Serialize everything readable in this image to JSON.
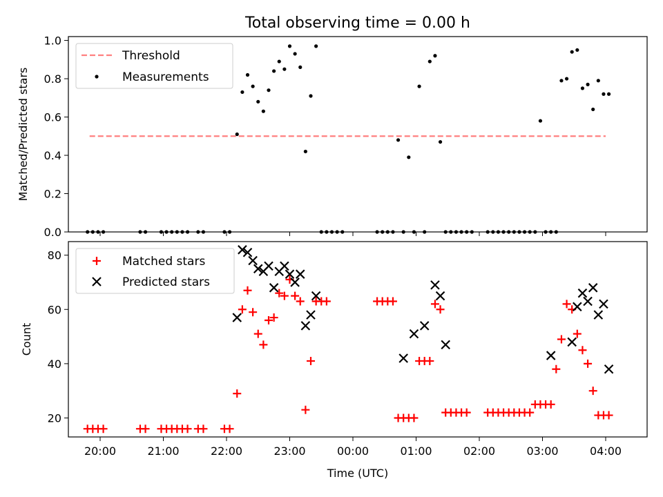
{
  "chart_data": [
    {
      "type": "scatter",
      "title": "Total observing time = 0.00 h",
      "ylabel": "Matched/Predicted stars",
      "ylim": [
        0,
        1.02
      ],
      "y_ticks": [
        "0.0",
        "0.2",
        "0.4",
        "0.6",
        "0.8",
        "1.0"
      ],
      "x_ticks": [
        "20:00",
        "21:00",
        "22:00",
        "23:00",
        "00:00",
        "01:00",
        "02:00",
        "03:00",
        "04:00"
      ],
      "legend": "top-left",
      "series": [
        {
          "name": "Threshold",
          "style": "dashed-line",
          "color": "#ff7f7f",
          "x": [
            "19:50",
            "04:00"
          ],
          "y": [
            0.5,
            0.5
          ]
        },
        {
          "name": "Measurements",
          "style": "point",
          "color": "#000000",
          "x": [
            "19:48",
            "19:53",
            "19:58",
            "20:03",
            "20:38",
            "20:43",
            "20:58",
            "21:03",
            "21:08",
            "21:13",
            "21:18",
            "21:23",
            "21:33",
            "21:38",
            "21:58",
            "22:03",
            "22:10",
            "22:15",
            "22:20",
            "22:25",
            "22:30",
            "22:35",
            "22:40",
            "22:45",
            "22:50",
            "22:55",
            "23:00",
            "23:05",
            "23:10",
            "23:15",
            "23:20",
            "23:25",
            "23:30",
            "23:35",
            "23:40",
            "23:45",
            "23:50",
            "00:23",
            "00:28",
            "00:33",
            "00:38",
            "00:43",
            "00:48",
            "00:53",
            "00:58",
            "01:03",
            "01:08",
            "01:13",
            "01:18",
            "01:23",
            "01:28",
            "01:33",
            "01:38",
            "01:43",
            "01:48",
            "01:53",
            "02:08",
            "02:13",
            "02:18",
            "02:23",
            "02:28",
            "02:33",
            "02:38",
            "02:43",
            "02:48",
            "02:53",
            "02:58",
            "03:03",
            "03:08",
            "03:13",
            "03:18",
            "03:23",
            "03:28",
            "03:33",
            "03:38",
            "03:43",
            "03:48",
            "03:53",
            "03:58",
            "04:03"
          ],
          "y": [
            0,
            0,
            0,
            0,
            0,
            0,
            0,
            0,
            0,
            0,
            0,
            0,
            0,
            0,
            0,
            0,
            0.51,
            0.73,
            0.82,
            0.76,
            0.68,
            0.63,
            0.74,
            0.84,
            0.89,
            0.85,
            0.97,
            0.93,
            0.86,
            0.42,
            0.71,
            0.97,
            0,
            0,
            0,
            0,
            0,
            0,
            0,
            0,
            0,
            0.48,
            0,
            0.39,
            0,
            0.76,
            0,
            0.89,
            0.92,
            0.47,
            0,
            0,
            0,
            0,
            0,
            0,
            0,
            0,
            0,
            0,
            0,
            0,
            0,
            0,
            0,
            0,
            0.58,
            0,
            0,
            0,
            0.79,
            0.8,
            0.94,
            0.95,
            0.75,
            0.77,
            0.64,
            0.79,
            0.72,
            0.72
          ]
        }
      ]
    },
    {
      "type": "scatter",
      "xlabel": "Time (UTC)",
      "ylabel": "Count",
      "ylim": [
        13,
        85
      ],
      "y_ticks": [
        "20",
        "40",
        "60",
        "80"
      ],
      "x_ticks": [
        "20:00",
        "21:00",
        "22:00",
        "23:00",
        "00:00",
        "01:00",
        "02:00",
        "03:00",
        "04:00"
      ],
      "legend": "top-left",
      "series": [
        {
          "name": "Matched stars",
          "style": "plus",
          "color": "#ff0000",
          "x": [
            "19:48",
            "19:53",
            "19:58",
            "20:03",
            "20:38",
            "20:43",
            "20:58",
            "21:03",
            "21:08",
            "21:13",
            "21:18",
            "21:23",
            "21:33",
            "21:38",
            "21:58",
            "22:03",
            "22:10",
            "22:15",
            "22:20",
            "22:25",
            "22:30",
            "22:35",
            "22:40",
            "22:45",
            "22:50",
            "22:55",
            "23:00",
            "23:05",
            "23:10",
            "23:15",
            "23:20",
            "23:25",
            "23:30",
            "23:35",
            "00:23",
            "00:28",
            "00:33",
            "00:38",
            "00:43",
            "00:48",
            "00:53",
            "00:58",
            "01:03",
            "01:08",
            "01:13",
            "01:18",
            "01:23",
            "01:28",
            "01:33",
            "01:38",
            "01:43",
            "01:48",
            "02:08",
            "02:13",
            "02:18",
            "02:23",
            "02:28",
            "02:33",
            "02:38",
            "02:43",
            "02:48",
            "02:53",
            "02:58",
            "03:03",
            "03:08",
            "03:13",
            "03:18",
            "03:23",
            "03:28",
            "03:33",
            "03:38",
            "03:43",
            "03:48",
            "03:53",
            "03:58",
            "04:03"
          ],
          "y": [
            16,
            16,
            16,
            16,
            16,
            16,
            16,
            16,
            16,
            16,
            16,
            16,
            16,
            16,
            16,
            16,
            29,
            60,
            67,
            59,
            51,
            47,
            56,
            57,
            66,
            65,
            71,
            65,
            63,
            23,
            41,
            63,
            63,
            63,
            63,
            63,
            63,
            63,
            20,
            20,
            20,
            20,
            41,
            41,
            41,
            62,
            60,
            22,
            22,
            22,
            22,
            22,
            22,
            22,
            22,
            22,
            22,
            22,
            22,
            22,
            22,
            25,
            25,
            25,
            25,
            38,
            49,
            62,
            60,
            51,
            45,
            40,
            30,
            21,
            21,
            21
          ]
        },
        {
          "name": "Predicted stars",
          "style": "x",
          "color": "#000000",
          "x": [
            "22:10",
            "22:15",
            "22:20",
            "22:25",
            "22:30",
            "22:35",
            "22:40",
            "22:45",
            "22:50",
            "22:55",
            "23:00",
            "23:05",
            "23:10",
            "23:15",
            "23:20",
            "23:25",
            "00:48",
            "00:58",
            "01:08",
            "01:18",
            "01:23",
            "01:28",
            "03:08",
            "03:28",
            "03:33",
            "03:38",
            "03:43",
            "03:48",
            "03:53",
            "03:58",
            "04:03"
          ],
          "y": [
            57,
            82,
            81,
            78,
            75,
            74,
            76,
            68,
            74,
            76,
            73,
            70,
            73,
            54,
            58,
            65,
            42,
            51,
            54,
            69,
            65,
            47,
            43,
            48,
            61,
            66,
            63,
            68,
            58,
            62,
            38
          ]
        }
      ]
    }
  ]
}
